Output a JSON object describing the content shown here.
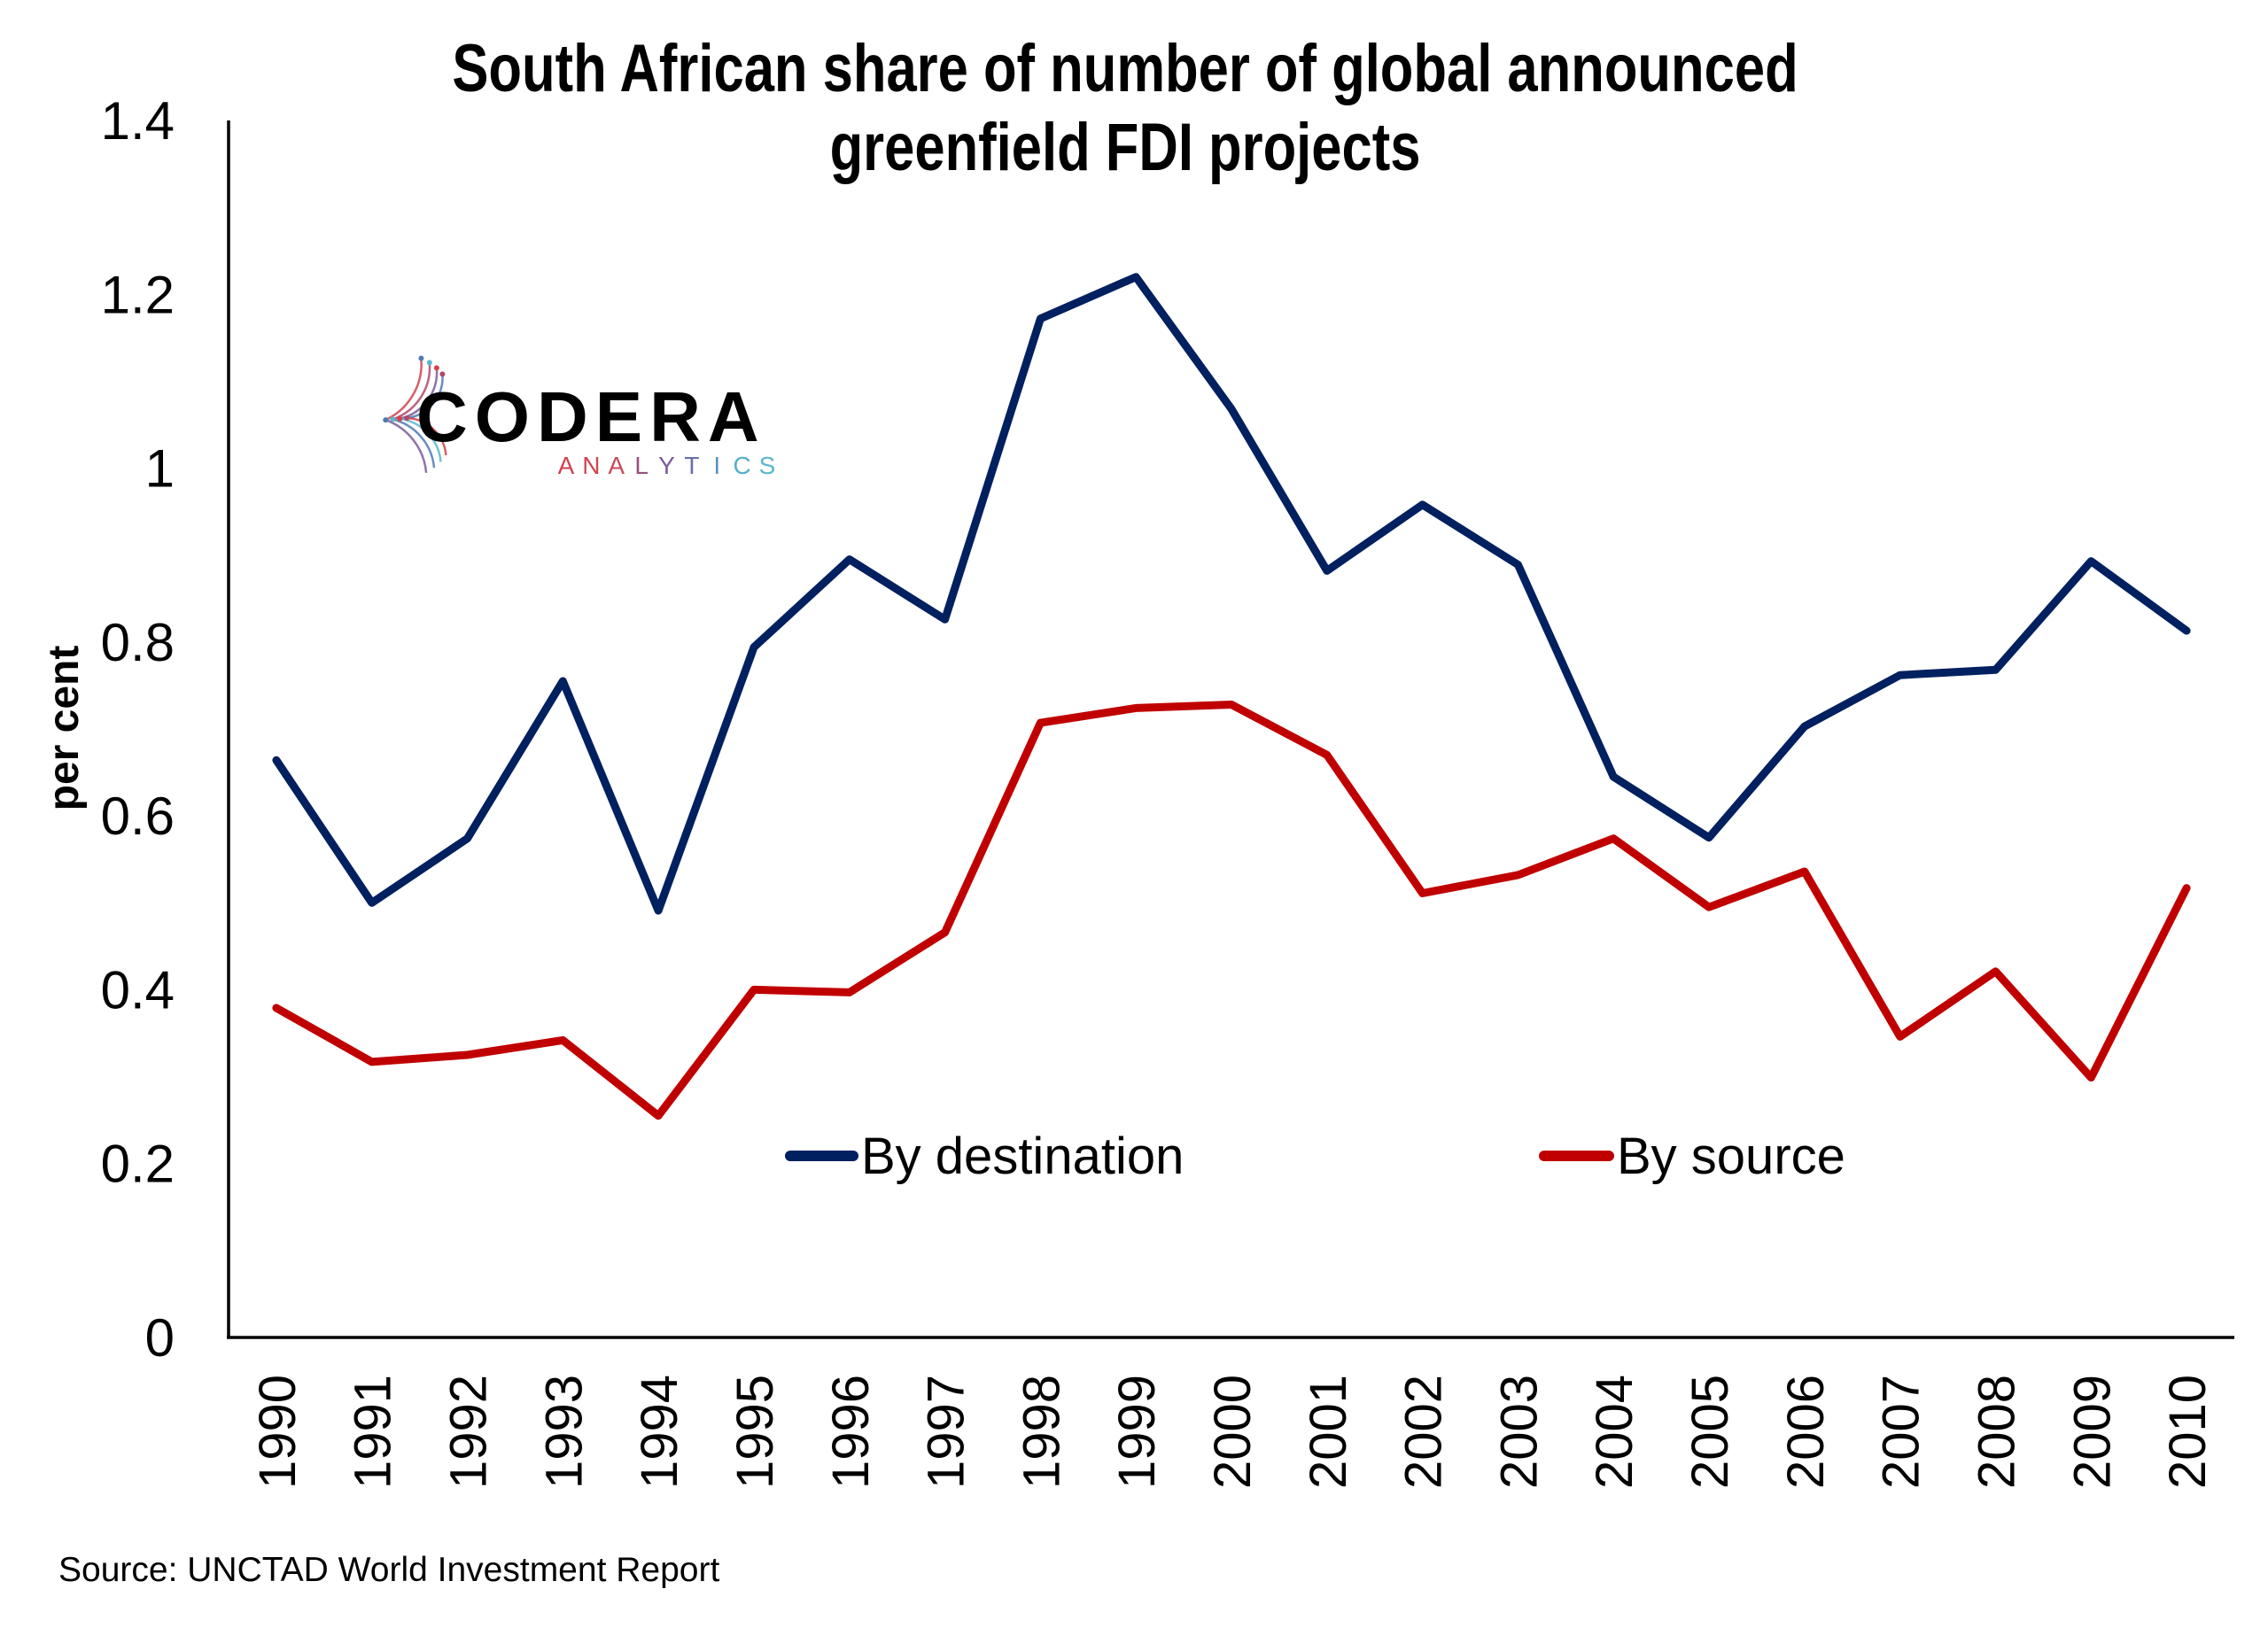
{
  "chart_data": {
    "type": "line",
    "title": [
      "South African share of number of global announced",
      "greenfield FDI projects"
    ],
    "xlabel": "",
    "ylabel": "per cent",
    "ylim": [
      0,
      1.4
    ],
    "yticks": [
      0,
      0.2,
      0.4,
      0.6,
      0.8,
      1,
      1.2,
      1.4
    ],
    "ytick_labels": [
      "0",
      "0.2",
      "0.4",
      "0.6",
      "0.8",
      "1",
      "1.2",
      "1.4"
    ],
    "grid": false,
    "legend_position": "bottom-center-inside",
    "categories": [
      "1990",
      "1991",
      "1992",
      "1993",
      "1994",
      "1995",
      "1996",
      "1997",
      "1998",
      "1999",
      "2000",
      "2001",
      "2002",
      "2003",
      "2004",
      "2005",
      "2006",
      "2007",
      "2008",
      "2009",
      "2010"
    ],
    "series": [
      {
        "name": "By destination",
        "color": "#002060",
        "values": [
          0.664,
          0.5,
          0.574,
          0.755,
          0.491,
          0.794,
          0.895,
          0.826,
          1.172,
          1.22,
          1.068,
          0.882,
          0.958,
          0.889,
          0.645,
          0.575,
          0.703,
          0.762,
          0.768,
          0.893,
          0.813
        ]
      },
      {
        "name": "By source",
        "color": "#C00000",
        "values": [
          0.379,
          0.317,
          0.325,
          0.342,
          0.255,
          0.4,
          0.397,
          0.466,
          0.707,
          0.724,
          0.728,
          0.67,
          0.511,
          0.532,
          0.574,
          0.495,
          0.536,
          0.346,
          0.421,
          0.299,
          0.517
        ]
      }
    ],
    "source": "Source: UNCTAD World Investment Report"
  },
  "logo": {
    "name": "CODERA",
    "sub_letters": [
      "A",
      "N",
      "A",
      "L",
      "Y",
      "T",
      "I",
      "C",
      "S"
    ],
    "sub_colors": [
      "#d2424c",
      "#cf4450",
      "#c84a5a",
      "#9b4f7c",
      "#7a5a9a",
      "#6a6fa8",
      "#5a92bc",
      "#56aec8",
      "#5ab8cc"
    ]
  }
}
